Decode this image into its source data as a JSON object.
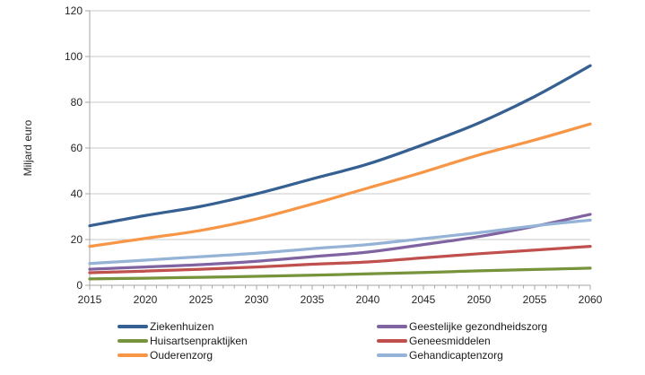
{
  "chart_data": {
    "type": "line",
    "title": "",
    "ylabel": "Miljard euro",
    "xlabel": "",
    "ylim": [
      0,
      120
    ],
    "yticks": [
      0,
      20,
      40,
      60,
      80,
      100,
      120
    ],
    "grid": "horizontal",
    "legend_position": "bottom-two-columns",
    "categories": [
      2015,
      2020,
      2025,
      2030,
      2035,
      2040,
      2045,
      2050,
      2055,
      2060
    ],
    "minor_x_tick_every_years": 1,
    "series": [
      {
        "name": "Ziekenhuizen",
        "color": "#366092",
        "values": [
          26,
          30.5,
          34.5,
          40,
          46.5,
          53,
          61.5,
          71,
          82.5,
          96
        ]
      },
      {
        "name": "Huisartsenpraktijken",
        "color": "#77933C",
        "values": [
          2.8,
          3.1,
          3.5,
          3.9,
          4.4,
          5,
          5.6,
          6.3,
          6.9,
          7.5
        ]
      },
      {
        "name": "Ouderenzorg",
        "color": "#F79646",
        "values": [
          17,
          20.5,
          24,
          29,
          35.5,
          42.5,
          49.5,
          57,
          63.5,
          70.5
        ]
      },
      {
        "name": "Geestelijke gezondheidszorg",
        "color": "#8064A2",
        "values": [
          7,
          8,
          9,
          10.5,
          12.5,
          14.5,
          17.8,
          21.3,
          25.8,
          31
        ]
      },
      {
        "name": "Geneesmiddelen",
        "color": "#C0504D",
        "values": [
          5.5,
          6.2,
          7,
          8,
          9.2,
          10.2,
          12,
          13.8,
          15.4,
          17
        ]
      },
      {
        "name": "Gehandicaptenzorg",
        "color": "#95B3D7",
        "values": [
          9.5,
          11,
          12.5,
          14,
          16,
          17.8,
          20.4,
          23,
          26,
          28.5
        ]
      }
    ],
    "colors": {
      "grid": "#C9C9C9",
      "axis": "#A6A6A6",
      "text": "#262626"
    }
  }
}
